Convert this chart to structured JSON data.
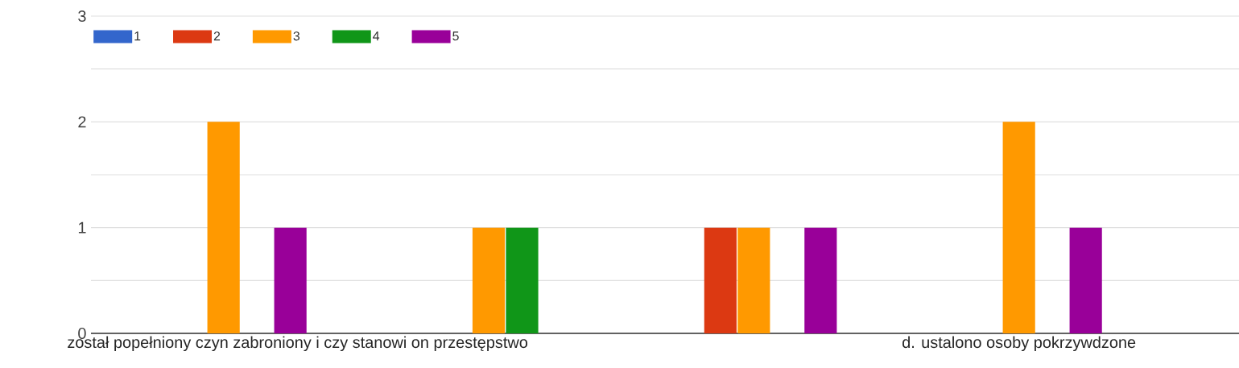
{
  "chart_data": {
    "type": "bar",
    "categories": [
      "został popełniony czyn zabroniony i czy stanowi on przestępstwo",
      null,
      null,
      "d. ustalono osoby pokrzywdzone"
    ],
    "series": [
      {
        "name": "1",
        "color": "#3366cc",
        "values": [
          0,
          0,
          0,
          0
        ]
      },
      {
        "name": "2",
        "color": "#dc3912",
        "values": [
          0,
          0,
          1,
          0
        ]
      },
      {
        "name": "3",
        "color": "#ff9900",
        "values": [
          2,
          1,
          1,
          2
        ]
      },
      {
        "name": "4",
        "color": "#109618",
        "values": [
          0,
          1,
          0,
          0
        ]
      },
      {
        "name": "5",
        "color": "#990099",
        "values": [
          1,
          0,
          1,
          1
        ]
      }
    ],
    "ylim": [
      0,
      3
    ],
    "yticks": [
      0,
      {
        "value": 0.5,
        "label": null
      },
      1,
      {
        "value": 1.5,
        "label": null
      },
      2,
      {
        "value": 2.5,
        "label": null
      },
      3
    ],
    "grid": "y",
    "legend": "top left"
  }
}
